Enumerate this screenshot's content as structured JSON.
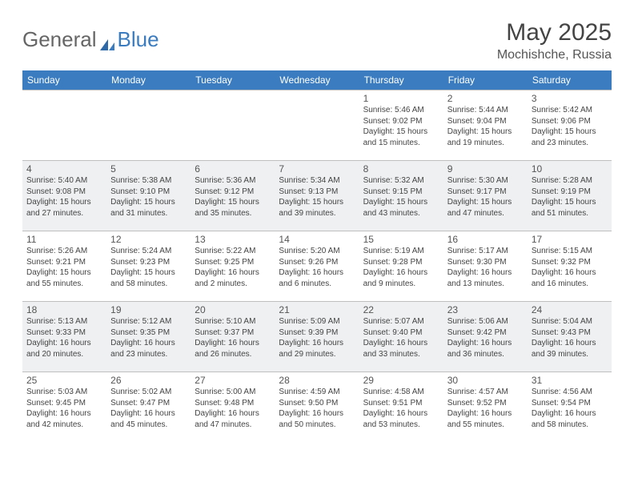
{
  "brand": {
    "part1": "General",
    "part2": "Blue"
  },
  "title": "May 2025",
  "location": "Mochishche, Russia",
  "colors": {
    "header_bg": "#3a7cbf",
    "header_text": "#ffffff",
    "shaded_row": "#eef0f2",
    "border": "#bfbfbf",
    "text": "#444444"
  },
  "day_headers": [
    "Sunday",
    "Monday",
    "Tuesday",
    "Wednesday",
    "Thursday",
    "Friday",
    "Saturday"
  ],
  "weeks": [
    {
      "shaded": false,
      "days": [
        {
          "num": "",
          "sunrise": "",
          "sunset": "",
          "daylight": ""
        },
        {
          "num": "",
          "sunrise": "",
          "sunset": "",
          "daylight": ""
        },
        {
          "num": "",
          "sunrise": "",
          "sunset": "",
          "daylight": ""
        },
        {
          "num": "",
          "sunrise": "",
          "sunset": "",
          "daylight": ""
        },
        {
          "num": "1",
          "sunrise": "Sunrise: 5:46 AM",
          "sunset": "Sunset: 9:02 PM",
          "daylight": "Daylight: 15 hours and 15 minutes."
        },
        {
          "num": "2",
          "sunrise": "Sunrise: 5:44 AM",
          "sunset": "Sunset: 9:04 PM",
          "daylight": "Daylight: 15 hours and 19 minutes."
        },
        {
          "num": "3",
          "sunrise": "Sunrise: 5:42 AM",
          "sunset": "Sunset: 9:06 PM",
          "daylight": "Daylight: 15 hours and 23 minutes."
        }
      ]
    },
    {
      "shaded": true,
      "days": [
        {
          "num": "4",
          "sunrise": "Sunrise: 5:40 AM",
          "sunset": "Sunset: 9:08 PM",
          "daylight": "Daylight: 15 hours and 27 minutes."
        },
        {
          "num": "5",
          "sunrise": "Sunrise: 5:38 AM",
          "sunset": "Sunset: 9:10 PM",
          "daylight": "Daylight: 15 hours and 31 minutes."
        },
        {
          "num": "6",
          "sunrise": "Sunrise: 5:36 AM",
          "sunset": "Sunset: 9:12 PM",
          "daylight": "Daylight: 15 hours and 35 minutes."
        },
        {
          "num": "7",
          "sunrise": "Sunrise: 5:34 AM",
          "sunset": "Sunset: 9:13 PM",
          "daylight": "Daylight: 15 hours and 39 minutes."
        },
        {
          "num": "8",
          "sunrise": "Sunrise: 5:32 AM",
          "sunset": "Sunset: 9:15 PM",
          "daylight": "Daylight: 15 hours and 43 minutes."
        },
        {
          "num": "9",
          "sunrise": "Sunrise: 5:30 AM",
          "sunset": "Sunset: 9:17 PM",
          "daylight": "Daylight: 15 hours and 47 minutes."
        },
        {
          "num": "10",
          "sunrise": "Sunrise: 5:28 AM",
          "sunset": "Sunset: 9:19 PM",
          "daylight": "Daylight: 15 hours and 51 minutes."
        }
      ]
    },
    {
      "shaded": false,
      "days": [
        {
          "num": "11",
          "sunrise": "Sunrise: 5:26 AM",
          "sunset": "Sunset: 9:21 PM",
          "daylight": "Daylight: 15 hours and 55 minutes."
        },
        {
          "num": "12",
          "sunrise": "Sunrise: 5:24 AM",
          "sunset": "Sunset: 9:23 PM",
          "daylight": "Daylight: 15 hours and 58 minutes."
        },
        {
          "num": "13",
          "sunrise": "Sunrise: 5:22 AM",
          "sunset": "Sunset: 9:25 PM",
          "daylight": "Daylight: 16 hours and 2 minutes."
        },
        {
          "num": "14",
          "sunrise": "Sunrise: 5:20 AM",
          "sunset": "Sunset: 9:26 PM",
          "daylight": "Daylight: 16 hours and 6 minutes."
        },
        {
          "num": "15",
          "sunrise": "Sunrise: 5:19 AM",
          "sunset": "Sunset: 9:28 PM",
          "daylight": "Daylight: 16 hours and 9 minutes."
        },
        {
          "num": "16",
          "sunrise": "Sunrise: 5:17 AM",
          "sunset": "Sunset: 9:30 PM",
          "daylight": "Daylight: 16 hours and 13 minutes."
        },
        {
          "num": "17",
          "sunrise": "Sunrise: 5:15 AM",
          "sunset": "Sunset: 9:32 PM",
          "daylight": "Daylight: 16 hours and 16 minutes."
        }
      ]
    },
    {
      "shaded": true,
      "days": [
        {
          "num": "18",
          "sunrise": "Sunrise: 5:13 AM",
          "sunset": "Sunset: 9:33 PM",
          "daylight": "Daylight: 16 hours and 20 minutes."
        },
        {
          "num": "19",
          "sunrise": "Sunrise: 5:12 AM",
          "sunset": "Sunset: 9:35 PM",
          "daylight": "Daylight: 16 hours and 23 minutes."
        },
        {
          "num": "20",
          "sunrise": "Sunrise: 5:10 AM",
          "sunset": "Sunset: 9:37 PM",
          "daylight": "Daylight: 16 hours and 26 minutes."
        },
        {
          "num": "21",
          "sunrise": "Sunrise: 5:09 AM",
          "sunset": "Sunset: 9:39 PM",
          "daylight": "Daylight: 16 hours and 29 minutes."
        },
        {
          "num": "22",
          "sunrise": "Sunrise: 5:07 AM",
          "sunset": "Sunset: 9:40 PM",
          "daylight": "Daylight: 16 hours and 33 minutes."
        },
        {
          "num": "23",
          "sunrise": "Sunrise: 5:06 AM",
          "sunset": "Sunset: 9:42 PM",
          "daylight": "Daylight: 16 hours and 36 minutes."
        },
        {
          "num": "24",
          "sunrise": "Sunrise: 5:04 AM",
          "sunset": "Sunset: 9:43 PM",
          "daylight": "Daylight: 16 hours and 39 minutes."
        }
      ]
    },
    {
      "shaded": false,
      "days": [
        {
          "num": "25",
          "sunrise": "Sunrise: 5:03 AM",
          "sunset": "Sunset: 9:45 PM",
          "daylight": "Daylight: 16 hours and 42 minutes."
        },
        {
          "num": "26",
          "sunrise": "Sunrise: 5:02 AM",
          "sunset": "Sunset: 9:47 PM",
          "daylight": "Daylight: 16 hours and 45 minutes."
        },
        {
          "num": "27",
          "sunrise": "Sunrise: 5:00 AM",
          "sunset": "Sunset: 9:48 PM",
          "daylight": "Daylight: 16 hours and 47 minutes."
        },
        {
          "num": "28",
          "sunrise": "Sunrise: 4:59 AM",
          "sunset": "Sunset: 9:50 PM",
          "daylight": "Daylight: 16 hours and 50 minutes."
        },
        {
          "num": "29",
          "sunrise": "Sunrise: 4:58 AM",
          "sunset": "Sunset: 9:51 PM",
          "daylight": "Daylight: 16 hours and 53 minutes."
        },
        {
          "num": "30",
          "sunrise": "Sunrise: 4:57 AM",
          "sunset": "Sunset: 9:52 PM",
          "daylight": "Daylight: 16 hours and 55 minutes."
        },
        {
          "num": "31",
          "sunrise": "Sunrise: 4:56 AM",
          "sunset": "Sunset: 9:54 PM",
          "daylight": "Daylight: 16 hours and 58 minutes."
        }
      ]
    }
  ]
}
